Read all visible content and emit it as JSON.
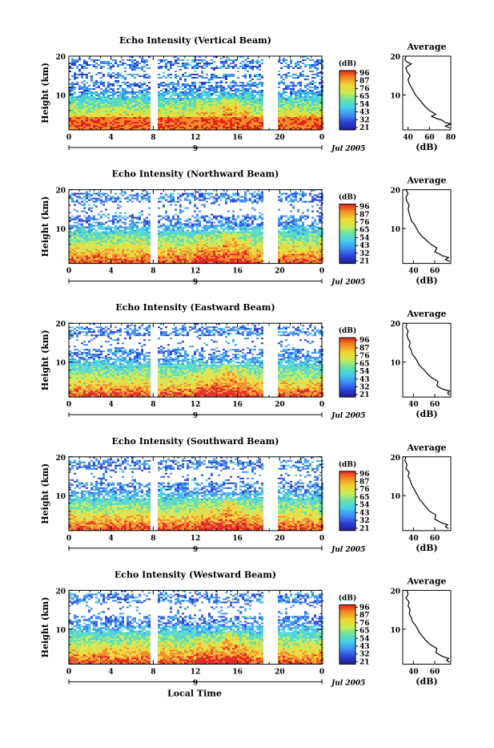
{
  "chart_data": [
    {
      "type": "heatmap",
      "title": "Echo Intensity (Vertical Beam)",
      "ylabel": "Height (km)",
      "xticks": [
        "0",
        "4",
        "8",
        "12",
        "16",
        "20",
        "0"
      ],
      "yticks": [
        "20",
        "10"
      ],
      "date_marker": "9",
      "date_label": "Jul 2005",
      "xlim": [
        0,
        24
      ],
      "ylim": [
        1,
        20
      ],
      "data_gaps_hours": [
        [
          7.7,
          8.3
        ],
        [
          18.3,
          19.8
        ]
      ],
      "colorbar": {
        "label": "(dB)",
        "ticks": [
          "96",
          "87",
          "76",
          "65",
          "54",
          "43",
          "32",
          "21"
        ]
      },
      "average": {
        "title": "Average",
        "xlabel": "(dB)",
        "xticks": [
          "40",
          "60",
          "80"
        ],
        "yticks": [
          "20",
          "10"
        ],
        "xlim": [
          35,
          80
        ],
        "profile": [
          [
            1.5,
            79
          ],
          [
            2,
            75
          ],
          [
            2.5,
            80
          ],
          [
            3,
            74
          ],
          [
            3.5,
            72
          ],
          [
            4,
            66
          ],
          [
            4.5,
            62
          ],
          [
            5,
            66
          ],
          [
            6,
            60
          ],
          [
            7,
            56
          ],
          [
            8,
            53
          ],
          [
            9,
            50
          ],
          [
            10,
            47
          ],
          [
            11,
            45
          ],
          [
            12,
            43
          ],
          [
            13,
            41
          ],
          [
            14,
            40
          ],
          [
            15,
            42
          ],
          [
            16,
            39
          ],
          [
            17,
            38
          ],
          [
            17.5,
            40
          ],
          [
            18,
            43
          ],
          [
            18.5,
            39
          ],
          [
            19,
            37
          ],
          [
            20,
            38
          ]
        ]
      }
    },
    {
      "type": "heatmap",
      "title": "Echo Intensity (Northward Beam)",
      "ylabel": "Height (km)",
      "xticks": [
        "0",
        "4",
        "8",
        "12",
        "16",
        "20",
        "0"
      ],
      "yticks": [
        "20",
        "10"
      ],
      "date_marker": "9",
      "date_label": "Jul 2005",
      "xlim": [
        0,
        24
      ],
      "ylim": [
        1,
        20
      ],
      "data_gaps_hours": [
        [
          7.7,
          8.3
        ],
        [
          18.3,
          19.8
        ]
      ],
      "colorbar": {
        "label": "(dB)",
        "ticks": [
          "96",
          "87",
          "76",
          "65",
          "54",
          "43",
          "32",
          "21"
        ]
      },
      "average": {
        "title": "Average",
        "xlabel": "(dB)",
        "xticks": [
          "40",
          "60"
        ],
        "yticks": [
          "20",
          "10"
        ],
        "xlim": [
          30,
          75
        ],
        "profile": [
          [
            1.5,
            74
          ],
          [
            2,
            70
          ],
          [
            2.5,
            73
          ],
          [
            3,
            67
          ],
          [
            3.5,
            64
          ],
          [
            4,
            60
          ],
          [
            5,
            62
          ],
          [
            6,
            56
          ],
          [
            7,
            52
          ],
          [
            8,
            48
          ],
          [
            9,
            45
          ],
          [
            10,
            43
          ],
          [
            11,
            41
          ],
          [
            12,
            38
          ],
          [
            13,
            37
          ],
          [
            14,
            36
          ],
          [
            15,
            35
          ],
          [
            16,
            36
          ],
          [
            17,
            34
          ],
          [
            18,
            33
          ],
          [
            19,
            35
          ],
          [
            20,
            33
          ]
        ]
      }
    },
    {
      "type": "heatmap",
      "title": "Echo Intensity (Eastward Beam)",
      "ylabel": "Height (km)",
      "xticks": [
        "0",
        "4",
        "8",
        "12",
        "16",
        "20",
        "0"
      ],
      "yticks": [
        "20",
        "10"
      ],
      "date_marker": "9",
      "date_label": "Jul 2005",
      "xlim": [
        0,
        24
      ],
      "ylim": [
        1,
        20
      ],
      "data_gaps_hours": [
        [
          7.7,
          8.3
        ],
        [
          18.3,
          19.8
        ]
      ],
      "colorbar": {
        "label": "(dB)",
        "ticks": [
          "96",
          "87",
          "76",
          "65",
          "54",
          "43",
          "32",
          "21"
        ]
      },
      "average": {
        "title": "Average",
        "xlabel": "(dB)",
        "xticks": [
          "40",
          "60"
        ],
        "yticks": [
          "20",
          "10"
        ],
        "xlim": [
          30,
          75
        ],
        "profile": [
          [
            1.5,
            74
          ],
          [
            2,
            72
          ],
          [
            2.5,
            74
          ],
          [
            3,
            68
          ],
          [
            3.5,
            64
          ],
          [
            4,
            62
          ],
          [
            5,
            63
          ],
          [
            6,
            57
          ],
          [
            7,
            53
          ],
          [
            8,
            50
          ],
          [
            9,
            46
          ],
          [
            10,
            44
          ],
          [
            11,
            42
          ],
          [
            12,
            39
          ],
          [
            13,
            38
          ],
          [
            14,
            36
          ],
          [
            15,
            37
          ],
          [
            16,
            35
          ],
          [
            17,
            34
          ],
          [
            18,
            35
          ],
          [
            19,
            33
          ],
          [
            20,
            34
          ]
        ]
      }
    },
    {
      "type": "heatmap",
      "title": "Echo Intensity (Southward Beam)",
      "ylabel": "Height (km)",
      "xticks": [
        "0",
        "4",
        "8",
        "12",
        "16",
        "20",
        "0"
      ],
      "yticks": [
        "20",
        "10"
      ],
      "date_marker": "9",
      "date_label": "Jul 2005",
      "xlim": [
        0,
        24
      ],
      "ylim": [
        1,
        20
      ],
      "data_gaps_hours": [
        [
          7.7,
          8.3
        ],
        [
          18.3,
          19.8
        ]
      ],
      "colorbar": {
        "label": "(dB)",
        "ticks": [
          "96",
          "87",
          "76",
          "65",
          "54",
          "43",
          "32",
          "21"
        ]
      },
      "average": {
        "title": "Average",
        "xlabel": "(dB)",
        "xticks": [
          "40",
          "60"
        ],
        "yticks": [
          "20",
          "10"
        ],
        "xlim": [
          30,
          75
        ],
        "profile": [
          [
            1.5,
            73
          ],
          [
            2,
            70
          ],
          [
            2.5,
            72
          ],
          [
            3,
            66
          ],
          [
            3.5,
            63
          ],
          [
            4,
            60
          ],
          [
            5,
            61
          ],
          [
            6,
            55
          ],
          [
            7,
            52
          ],
          [
            8,
            49
          ],
          [
            9,
            46
          ],
          [
            10,
            44
          ],
          [
            11,
            42
          ],
          [
            12,
            40
          ],
          [
            13,
            38
          ],
          [
            14,
            37
          ],
          [
            15,
            35
          ],
          [
            16,
            36
          ],
          [
            17,
            33
          ],
          [
            18,
            34
          ],
          [
            19,
            32
          ],
          [
            20,
            33
          ]
        ]
      }
    },
    {
      "type": "heatmap",
      "title": "Echo Intensity (Westward Beam)",
      "ylabel": "Height (km)",
      "xlabel": "Local Time",
      "xticks": [
        "0",
        "4",
        "8",
        "12",
        "16",
        "20",
        "0"
      ],
      "yticks": [
        "20",
        "10"
      ],
      "date_marker": "9",
      "date_label": "Jul 2005",
      "xlim": [
        0,
        24
      ],
      "ylim": [
        1,
        20
      ],
      "data_gaps_hours": [
        [
          7.7,
          8.3
        ],
        [
          18.3,
          19.8
        ]
      ],
      "colorbar": {
        "label": "(dB)",
        "ticks": [
          "96",
          "87",
          "76",
          "65",
          "54",
          "43",
          "32",
          "21"
        ]
      },
      "average": {
        "title": "Average",
        "xlabel": "(dB)",
        "xticks": [
          "40",
          "60"
        ],
        "yticks": [
          "20",
          "10"
        ],
        "xlim": [
          30,
          75
        ],
        "profile": [
          [
            1.5,
            74
          ],
          [
            2,
            71
          ],
          [
            2.5,
            73
          ],
          [
            3,
            67
          ],
          [
            3.5,
            64
          ],
          [
            4,
            61
          ],
          [
            5,
            62
          ],
          [
            6,
            56
          ],
          [
            7,
            52
          ],
          [
            8,
            49
          ],
          [
            9,
            46
          ],
          [
            10,
            44
          ],
          [
            11,
            42
          ],
          [
            12,
            39
          ],
          [
            13,
            38
          ],
          [
            14,
            36
          ],
          [
            15,
            37
          ],
          [
            16,
            35
          ],
          [
            17,
            36
          ],
          [
            18,
            33
          ],
          [
            19,
            35
          ],
          [
            20,
            34
          ]
        ]
      }
    }
  ]
}
